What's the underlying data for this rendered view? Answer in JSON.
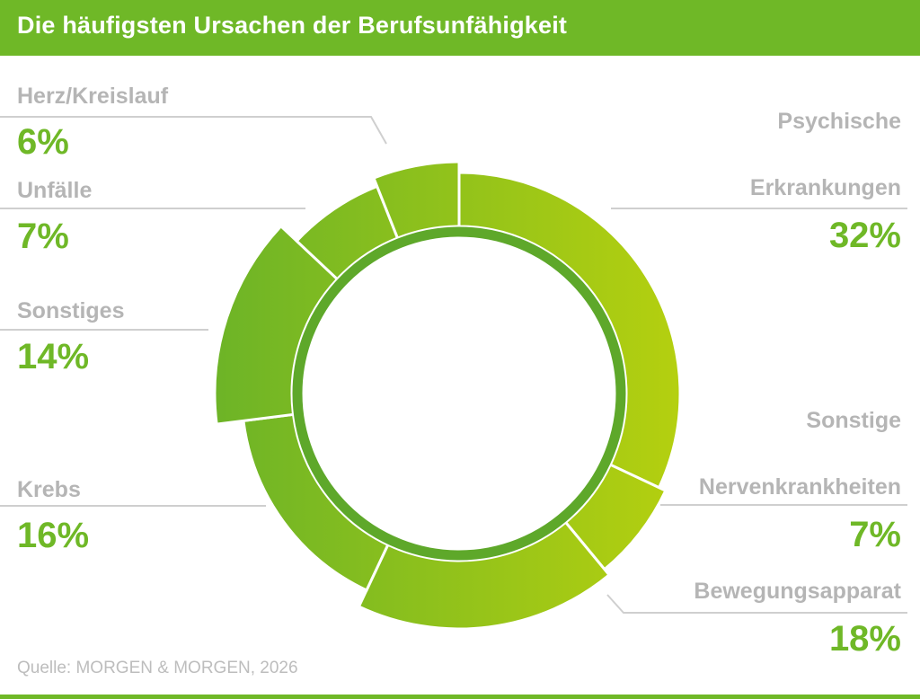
{
  "header": {
    "title": "Die häufigsten Ursachen der Berufsunfähigkeit"
  },
  "source": "Quelle: MORGEN & MORGEN, 2026",
  "colors": {
    "accent": "#6fb827",
    "label_gray": "#b5b5b5",
    "inner_ring": "#5ea82a"
  },
  "chart_data": {
    "type": "pie",
    "variant": "donut",
    "title": "Die häufigsten Ursachen der Berufsunfähigkeit",
    "unit": "%",
    "slices": [
      {
        "label": "Psychische Erkrankungen",
        "label_lines": [
          "Psychische",
          "Erkrankungen"
        ],
        "value": 32,
        "display": "32%"
      },
      {
        "label": "Sonstige Nervenkrankheiten",
        "label_lines": [
          "Sonstige",
          "Nervenkrankheiten"
        ],
        "value": 7,
        "display": "7%"
      },
      {
        "label": "Bewegungsapparat",
        "label_lines": [
          "Bewegungsapparat"
        ],
        "value": 18,
        "display": "18%"
      },
      {
        "label": "Krebs",
        "label_lines": [
          "Krebs"
        ],
        "value": 16,
        "display": "16%"
      },
      {
        "label": "Sonstiges",
        "label_lines": [
          "Sonstiges"
        ],
        "value": 14,
        "display": "14%"
      },
      {
        "label": "Unfälle",
        "label_lines": [
          "Unfälle"
        ],
        "value": 7,
        "display": "7%"
      },
      {
        "label": "Herz/Kreislauf",
        "label_lines": [
          "Herz/Kreislauf"
        ],
        "value": 6,
        "display": "6%"
      }
    ]
  }
}
